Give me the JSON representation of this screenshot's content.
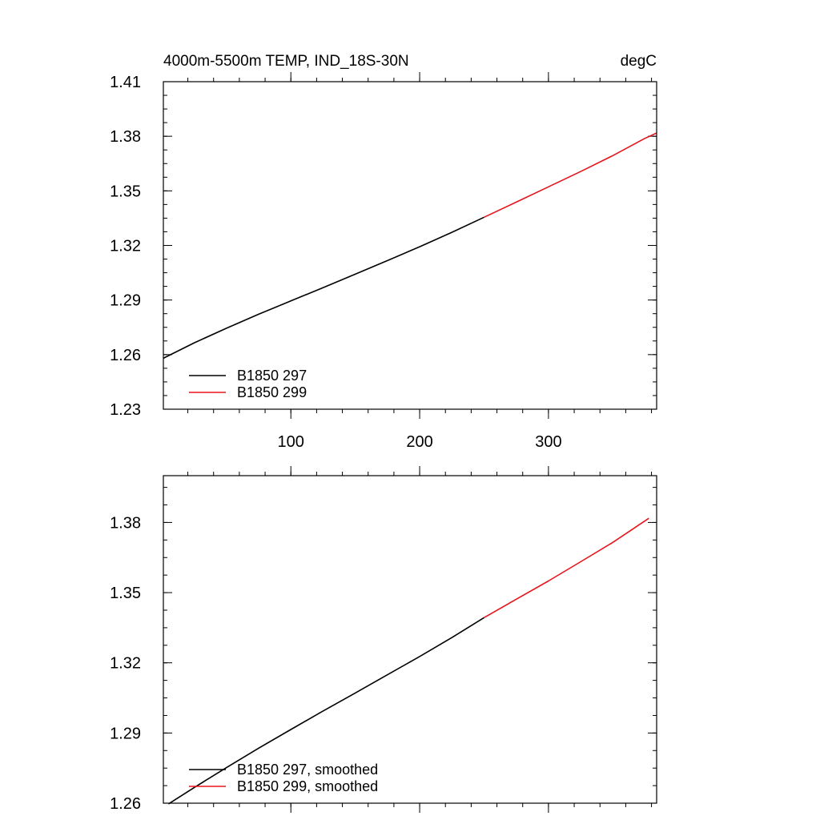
{
  "chart_data": [
    {
      "type": "line",
      "title": "4000m-5500m TEMP, IND_18S-30N",
      "units": "degC",
      "xlim": [
        1,
        384
      ],
      "ylim": [
        1.23,
        1.41
      ],
      "xticks": [
        100,
        200,
        300
      ],
      "xtick_labels": [
        "100",
        "200",
        "300"
      ],
      "yticks": [
        1.23,
        1.26,
        1.29,
        1.32,
        1.35,
        1.38,
        1.41
      ],
      "ytick_labels": [
        "1.23",
        "1.26",
        "1.29",
        "1.32",
        "1.35",
        "1.38",
        "1.41"
      ],
      "grid": false,
      "legend": "bottom-left",
      "series": [
        {
          "name": "B1850 297",
          "color": "#000000",
          "x": [
            1,
            25,
            50,
            75,
            100,
            125,
            150,
            175,
            200,
            225,
            250
          ],
          "y": [
            1.258,
            1.2665,
            1.2745,
            1.2822,
            1.2895,
            1.2968,
            1.3042,
            1.3117,
            1.3193,
            1.3272,
            1.3355
          ]
        },
        {
          "name": "B1850 299",
          "color": "#e8141c",
          "x": [
            250,
            275,
            300,
            325,
            350,
            375,
            384
          ],
          "y": [
            1.3355,
            1.3438,
            1.3522,
            1.3606,
            1.3694,
            1.3789,
            1.3818
          ]
        }
      ]
    },
    {
      "type": "line",
      "title": "",
      "xlim": [
        1,
        384
      ],
      "ylim": [
        1.26,
        1.4
      ],
      "xticks": [
        100,
        200,
        300
      ],
      "xtick_labels": [],
      "yticks": [
        1.26,
        1.29,
        1.32,
        1.35,
        1.38
      ],
      "ytick_labels": [
        "1.26",
        "1.29",
        "1.32",
        "1.35",
        "1.38"
      ],
      "grid": false,
      "legend": "bottom-left",
      "series": [
        {
          "name": "B1850 297, smoothed",
          "color": "#000000",
          "x": [
            5,
            25,
            50,
            75,
            100,
            125,
            150,
            175,
            200,
            225,
            250
          ],
          "y": [
            1.2597,
            1.2667,
            1.2752,
            1.2835,
            1.2915,
            1.2994,
            1.3071,
            1.3149,
            1.3227,
            1.3308,
            1.3393
          ]
        },
        {
          "name": "B1850 299, smoothed",
          "color": "#e8141c",
          "x": [
            250,
            275,
            300,
            325,
            350,
            378
          ],
          "y": [
            1.3393,
            1.3472,
            1.355,
            1.3632,
            1.3715,
            1.3818
          ]
        }
      ]
    }
  ]
}
